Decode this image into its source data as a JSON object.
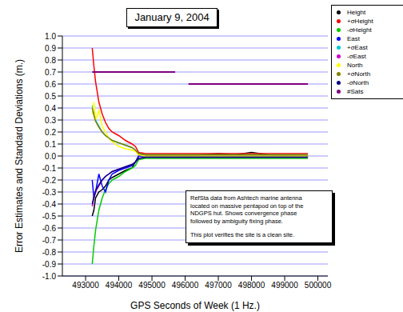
{
  "chart_data": {
    "type": "line",
    "title": "January 9, 2004",
    "x_label": "GPS Seconds of Week (1 Hz.)",
    "y_label": "Error Estimates and Standard Deviations (m.)",
    "annotation": [
      "RefSta data from Ashtech marine antenna",
      "located on massive pentapod on top of the",
      "NDGPS hut.  Shows convergence phase",
      "followed by ambiguity fixing phase.",
      "This plot verifies the site is a clean site."
    ],
    "grid": true,
    "xlim": [
      492300,
      500300
    ],
    "xticks": [
      493000,
      494000,
      495000,
      496000,
      497000,
      498000,
      499000,
      500000
    ],
    "ylim": [
      -1.0,
      1.0
    ],
    "yticks": [
      {
        "value": -1.0,
        "label": "-1.0"
      },
      -0.9,
      -0.8,
      -0.7,
      -0.6,
      -0.5,
      -0.4,
      -0.3,
      -0.2,
      -0.1,
      {
        "value": 0.0,
        "label": "0.0"
      },
      0.1,
      0.2,
      0.3,
      0.4,
      0.5,
      0.6,
      0.7,
      0.8,
      0.9,
      {
        "value": 1.0,
        "label": "1.0"
      }
    ],
    "x": [
      493200,
      493250,
      493300,
      493400,
      493500,
      493600,
      493700,
      493800,
      494000,
      494200,
      494400,
      494500,
      494600,
      494800,
      495000,
      495500,
      495700,
      495800,
      496100,
      496500,
      497000,
      497500,
      498000,
      498500,
      499000,
      499500,
      499700
    ],
    "series": [
      {
        "name": "Height",
        "color": "#000000",
        "values": [
          -0.5,
          -0.45,
          -0.35,
          -0.3,
          -0.28,
          -0.25,
          -0.2,
          -0.18,
          -0.15,
          -0.12,
          -0.1,
          -0.05,
          0,
          0.01,
          0,
          0,
          0.01,
          0,
          0,
          0.01,
          0.02,
          0.01,
          0.03,
          0.01,
          0,
          0.01,
          0
        ]
      },
      {
        "name": "+σHeight",
        "color": "#ff0000",
        "values": [
          0.9,
          0.75,
          0.62,
          0.45,
          0.35,
          0.28,
          0.23,
          0.2,
          0.17,
          0.13,
          0.1,
          0.08,
          0.03,
          0.02,
          0.02,
          0.02,
          0.02,
          0.02,
          0.02,
          0.02,
          0.02,
          0.02,
          0.02,
          0.02,
          0.02,
          0.02,
          0.02
        ]
      },
      {
        "name": "-σHeight",
        "color": "#00cc00",
        "values": [
          -0.9,
          -0.75,
          -0.62,
          -0.45,
          -0.35,
          -0.28,
          -0.23,
          -0.2,
          -0.17,
          -0.13,
          -0.1,
          -0.08,
          -0.03,
          -0.02,
          -0.02,
          -0.02,
          -0.02,
          -0.02,
          -0.02,
          -0.02,
          -0.02,
          -0.02,
          -0.02,
          -0.02,
          -0.02,
          -0.02,
          -0.02
        ]
      },
      {
        "name": "East",
        "color": "#0000ff",
        "values": [
          -0.2,
          -0.35,
          -0.3,
          -0.15,
          -0.25,
          -0.3,
          -0.2,
          -0.15,
          -0.12,
          -0.1,
          -0.08,
          -0.05,
          0,
          0,
          0,
          0,
          0,
          0,
          0,
          0,
          0,
          0,
          0,
          0,
          0,
          0,
          0
        ]
      },
      {
        "name": "+σEast",
        "color": "#00cccc",
        "values": [
          0.42,
          0.35,
          0.3,
          0.25,
          0.2,
          0.17,
          0.15,
          0.13,
          0.11,
          0.09,
          0.07,
          0.05,
          0.02,
          0.01,
          0.01,
          0.01,
          0.01,
          0.01,
          0.01,
          0.01,
          0.01,
          0.01,
          0.01,
          0.01,
          0.01,
          0.01,
          0.01
        ]
      },
      {
        "name": "-σEast",
        "color": "#cc00cc",
        "values": [
          -0.42,
          -0.35,
          -0.3,
          -0.25,
          -0.2,
          -0.17,
          -0.15,
          -0.13,
          -0.11,
          -0.09,
          -0.07,
          -0.05,
          -0.02,
          -0.01,
          -0.01,
          -0.01,
          -0.01,
          -0.01,
          -0.01,
          -0.01,
          -0.01,
          -0.01,
          -0.01,
          -0.01,
          -0.01,
          -0.01,
          -0.01
        ]
      },
      {
        "name": "North",
        "color": "#ffff00",
        "values": [
          0.35,
          0.45,
          0.3,
          0.38,
          0.25,
          0.2,
          0.15,
          0.12,
          0.08,
          0.06,
          0.05,
          0.04,
          0.01,
          0,
          0,
          0,
          0,
          0,
          0,
          0,
          0,
          0,
          0,
          0,
          0,
          0,
          0
        ]
      },
      {
        "name": "+σNorth",
        "color": "#808000",
        "values": [
          0.4,
          0.34,
          0.29,
          0.24,
          0.2,
          0.17,
          0.15,
          0.13,
          0.11,
          0.09,
          0.07,
          0.05,
          0.02,
          0.01,
          0.01,
          0.01,
          0.01,
          0.01,
          0.01,
          0.01,
          0.01,
          0.01,
          0.01,
          0.01,
          0.01,
          0.01,
          0.01
        ]
      },
      {
        "name": "-σNorth",
        "color": "#000080",
        "values": [
          -0.4,
          -0.34,
          -0.29,
          -0.24,
          -0.2,
          -0.17,
          -0.15,
          -0.13,
          -0.11,
          -0.09,
          -0.07,
          -0.05,
          -0.02,
          -0.01,
          -0.01,
          -0.01,
          -0.01,
          -0.01,
          -0.01,
          -0.01,
          -0.01,
          -0.01,
          -0.01,
          -0.01,
          -0.01,
          -0.01,
          -0.01
        ]
      },
      {
        "name": "#Sats",
        "color": "#800080",
        "values": [
          0.7,
          0.7,
          0.7,
          0.7,
          0.7,
          0.7,
          0.7,
          0.7,
          0.7,
          0.7,
          0.7,
          0.7,
          0.7,
          0.7,
          0.7,
          0.7,
          0.7,
          null,
          0.6,
          0.6,
          0.6,
          0.6,
          0.6,
          0.6,
          0.6,
          0.6,
          0.6
        ]
      }
    ]
  }
}
